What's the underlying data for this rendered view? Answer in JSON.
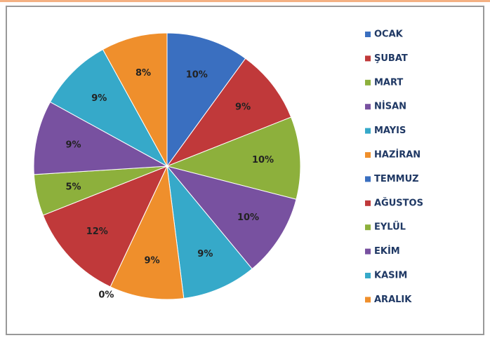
{
  "chart_data": {
    "type": "pie",
    "categories": [
      "OCAK",
      "ŞUBAT",
      "MART",
      "NİSAN",
      "MAYIS",
      "HAZİRAN",
      "TEMMUZ",
      "AĞUSTOS",
      "EYLÜL",
      "EKİM",
      "KASIM",
      "ARALIK"
    ],
    "values": [
      10,
      9,
      10,
      10,
      9,
      9,
      0,
      12,
      5,
      9,
      9,
      8
    ],
    "value_labels": [
      "10%",
      "9%",
      "10%",
      "10%",
      "9%",
      "9%",
      "0%",
      "12%",
      "5%",
      "9%",
      "9%",
      "8%"
    ],
    "colors": [
      "#3a6fc0",
      "#c0393a",
      "#8db03c",
      "#7851a0",
      "#36a9c9",
      "#ef8f2c",
      "#3a6fc0",
      "#c0393a",
      "#8db03c",
      "#7851a0",
      "#36a9c9",
      "#ef8f2c"
    ],
    "legend": "right"
  }
}
